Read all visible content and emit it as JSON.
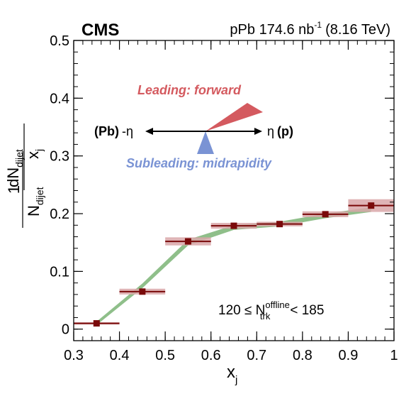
{
  "header": {
    "experiment": "CMS",
    "lumi_main": "pPb 174.6 nb",
    "lumi_sup": "-1",
    "energy": "(8.16 TeV)"
  },
  "diagram": {
    "leading_label": "Leading: forward",
    "subleading_label": "Subleading: midrapidity",
    "left_bold": "(Pb)",
    "left_sym": "-η",
    "right_sym": "η",
    "right_bold": "(p)",
    "leading_color": "#d45a5f",
    "subleading_color": "#7a93d4"
  },
  "annotation": {
    "lhs": "120 ≤ N",
    "sup": "offline",
    "sub": "trk",
    "rhs": "< 185"
  },
  "chart_data": {
    "type": "scatter",
    "x_label": "x",
    "x_label_sub": "j",
    "y_label": {
      "prefix": "1",
      "n_dijet": "N",
      "n_dijet_sub": "dijet",
      "dN": "dN",
      "dN_sub": "dijet",
      "denominator": "x",
      "denominator_sub": "j"
    },
    "xlim": [
      0.3,
      1.0
    ],
    "ylim": [
      -0.02,
      0.5
    ],
    "x_ticks": [
      0.3,
      0.4,
      0.5,
      0.6,
      0.7,
      0.8,
      0.9,
      1.0
    ],
    "x_tick_labels": [
      "0.3",
      "0.4",
      "0.5",
      "0.6",
      "0.7",
      "0.8",
      "0.9",
      "1"
    ],
    "y_ticks": [
      0,
      0.1,
      0.2,
      0.3,
      0.4,
      0.5
    ],
    "y_tick_labels": [
      "0",
      "0.1",
      "0.2",
      "0.3",
      "0.4",
      "0.5"
    ],
    "points": [
      {
        "x": 0.35,
        "y": 0.01,
        "xerr": 0.05,
        "syst": 0.002
      },
      {
        "x": 0.45,
        "y": 0.065,
        "xerr": 0.05,
        "syst": 0.005
      },
      {
        "x": 0.55,
        "y": 0.152,
        "xerr": 0.05,
        "syst": 0.007
      },
      {
        "x": 0.65,
        "y": 0.179,
        "xerr": 0.05,
        "syst": 0.005
      },
      {
        "x": 0.75,
        "y": 0.182,
        "xerr": 0.05,
        "syst": 0.004
      },
      {
        "x": 0.85,
        "y": 0.199,
        "xerr": 0.05,
        "syst": 0.005
      },
      {
        "x": 0.95,
        "y": 0.214,
        "xerr": 0.05,
        "syst": 0.011
      }
    ],
    "band": [
      {
        "x": 0.35,
        "y": 0.01,
        "w": 0.003
      },
      {
        "x": 0.45,
        "y": 0.075,
        "w": 0.004
      },
      {
        "x": 0.55,
        "y": 0.15,
        "w": 0.005
      },
      {
        "x": 0.65,
        "y": 0.176,
        "w": 0.004
      },
      {
        "x": 0.75,
        "y": 0.182,
        "w": 0.004
      },
      {
        "x": 0.85,
        "y": 0.196,
        "w": 0.004
      },
      {
        "x": 0.95,
        "y": 0.207,
        "w": 0.004
      }
    ],
    "colors": {
      "marker": "#7a0a0a",
      "syst_box": "#d9a7a9",
      "band": "#8fbf8a"
    }
  }
}
